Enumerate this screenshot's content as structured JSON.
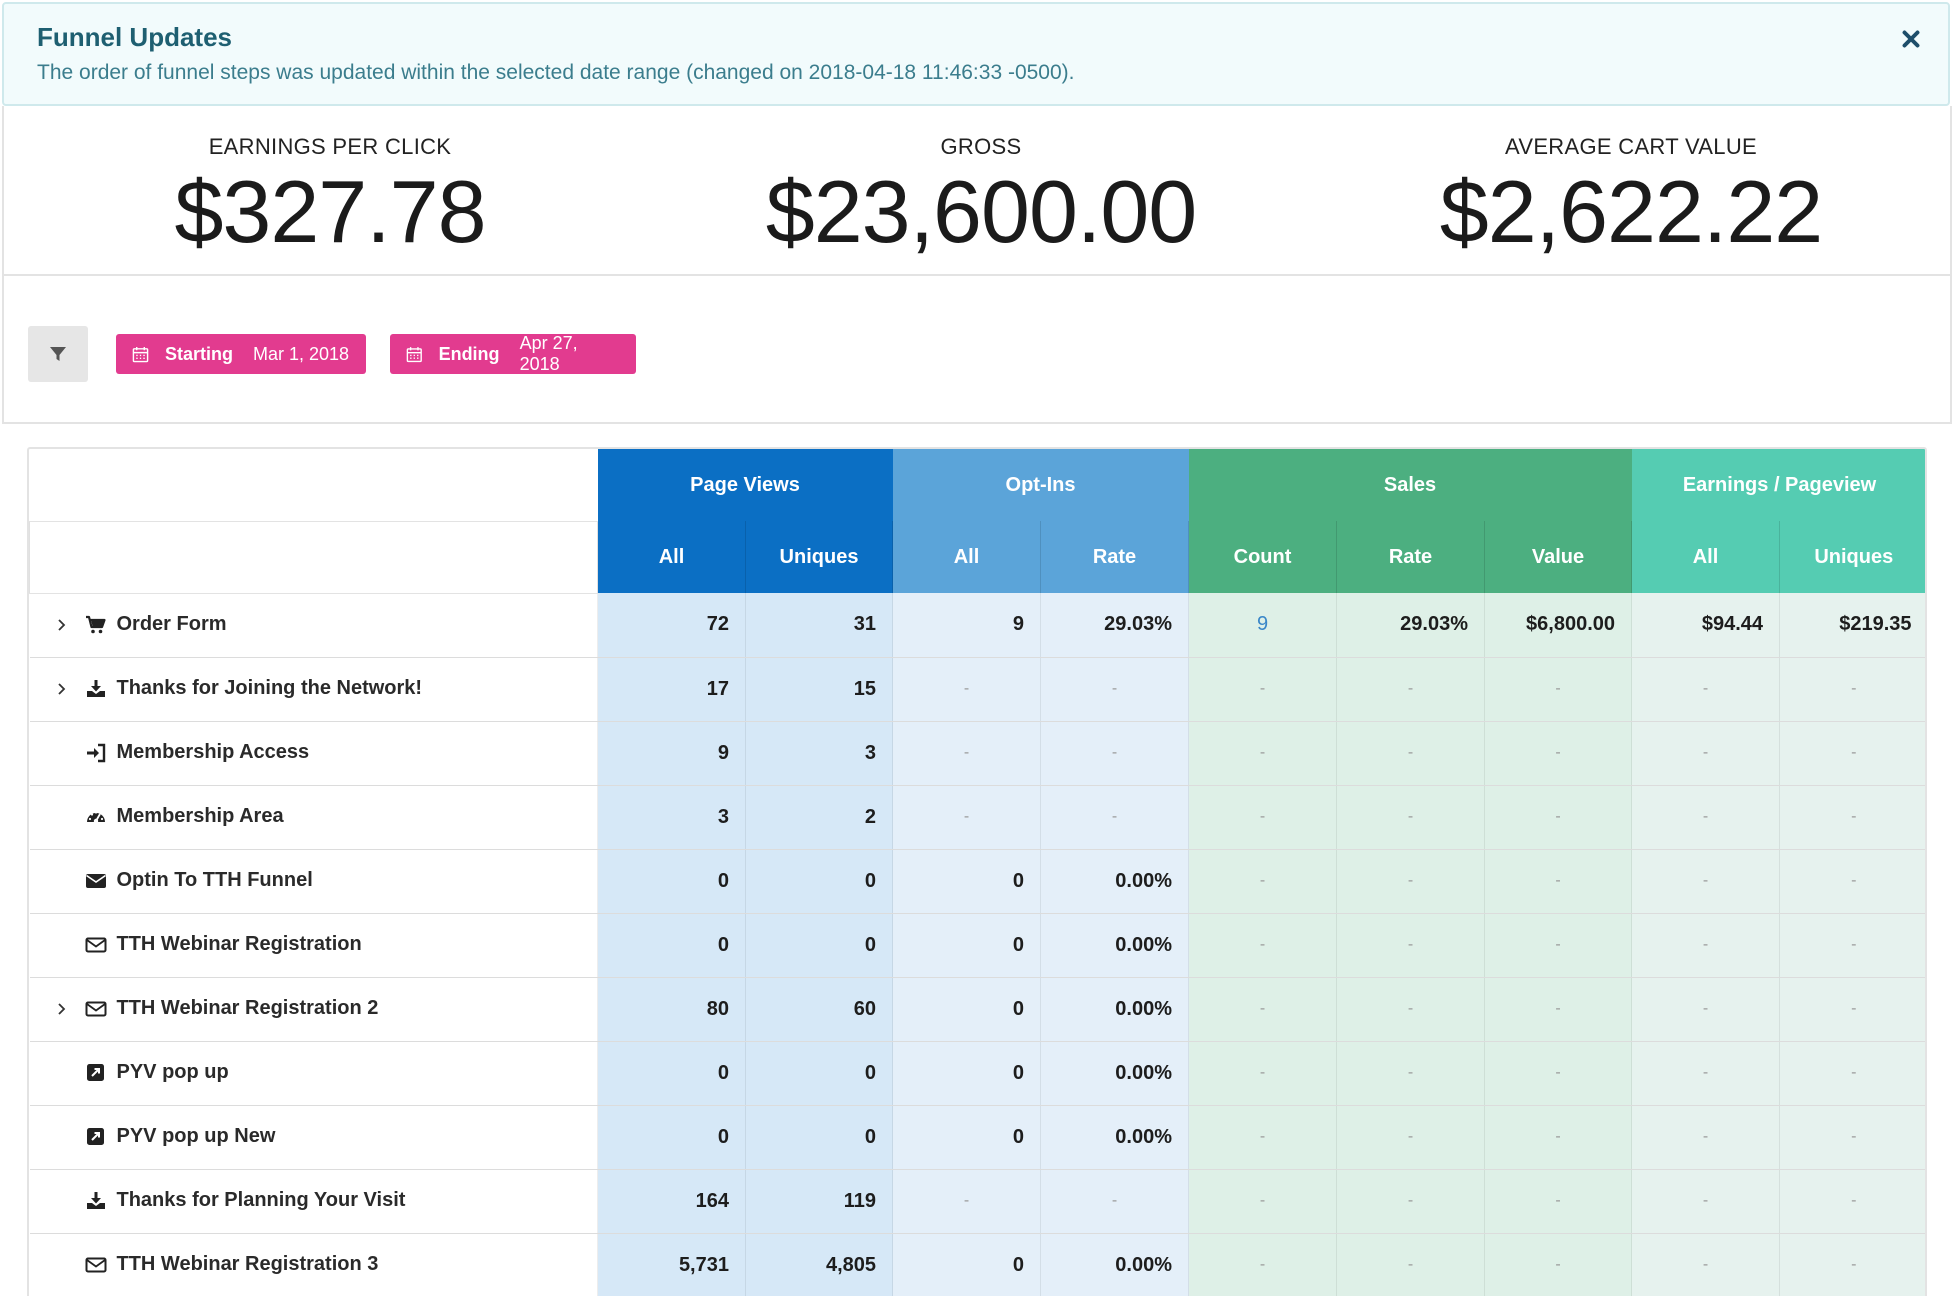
{
  "alert": {
    "title": "Funnel Updates",
    "message": "The order of funnel steps was updated within the selected date range (changed on 2018-04-18 11:46:33 -0500).",
    "close_icon": "close-icon"
  },
  "stats": [
    {
      "label": "EARNINGS PER CLICK",
      "value": "$327.78"
    },
    {
      "label": "GROSS",
      "value": "$23,600.00"
    },
    {
      "label": "AVERAGE CART VALUE",
      "value": "$2,622.22"
    }
  ],
  "filters": {
    "filter_icon": "filter-icon",
    "start": {
      "label": "Starting",
      "date": "Mar 1, 2018"
    },
    "end": {
      "label": "Ending",
      "date": "Apr 27, 2018"
    }
  },
  "table": {
    "groups": [
      "Page Views",
      "Opt-Ins",
      "Sales",
      "Earnings / Pageview"
    ],
    "subheaders": [
      "All",
      "Uniques",
      "All",
      "Rate",
      "Count",
      "Rate",
      "Value",
      "All",
      "Uniques"
    ],
    "rows": [
      {
        "name": "Order Form",
        "icon": "cart-icon",
        "expandable": true,
        "cells": [
          "72",
          "31",
          "9",
          "29.03%",
          "9",
          "29.03%",
          "$6,800.00",
          "$94.44",
          "$219.35"
        ]
      },
      {
        "name": "Thanks for Joining the Network!",
        "icon": "download-icon",
        "expandable": true,
        "cells": [
          "17",
          "15",
          "-",
          "-",
          "-",
          "-",
          "-",
          "-",
          "-"
        ]
      },
      {
        "name": "Membership Access",
        "icon": "sign-in-icon",
        "expandable": false,
        "cells": [
          "9",
          "3",
          "-",
          "-",
          "-",
          "-",
          "-",
          "-",
          "-"
        ]
      },
      {
        "name": "Membership Area",
        "icon": "dashboard-icon",
        "expandable": false,
        "cells": [
          "3",
          "2",
          "-",
          "-",
          "-",
          "-",
          "-",
          "-",
          "-"
        ]
      },
      {
        "name": "Optin To TTH Funnel",
        "icon": "envelope-icon",
        "expandable": false,
        "cells": [
          "0",
          "0",
          "0",
          "0.00%",
          "-",
          "-",
          "-",
          "-",
          "-"
        ]
      },
      {
        "name": "TTH Webinar Registration",
        "icon": "envelope-outline-icon",
        "expandable": false,
        "cells": [
          "0",
          "0",
          "0",
          "0.00%",
          "-",
          "-",
          "-",
          "-",
          "-"
        ]
      },
      {
        "name": "TTH Webinar Registration 2",
        "icon": "envelope-outline-icon",
        "expandable": true,
        "cells": [
          "80",
          "60",
          "0",
          "0.00%",
          "-",
          "-",
          "-",
          "-",
          "-"
        ]
      },
      {
        "name": "PYV pop up",
        "icon": "external-link-icon",
        "expandable": false,
        "cells": [
          "0",
          "0",
          "0",
          "0.00%",
          "-",
          "-",
          "-",
          "-",
          "-"
        ]
      },
      {
        "name": "PYV pop up New",
        "icon": "external-link-icon",
        "expandable": false,
        "cells": [
          "0",
          "0",
          "0",
          "0.00%",
          "-",
          "-",
          "-",
          "-",
          "-"
        ]
      },
      {
        "name": "Thanks for Planning Your Visit",
        "icon": "download-icon",
        "expandable": false,
        "cells": [
          "164",
          "119",
          "-",
          "-",
          "-",
          "-",
          "-",
          "-",
          "-"
        ]
      },
      {
        "name": "TTH Webinar Registration 3",
        "icon": "envelope-outline-icon",
        "expandable": false,
        "cells": [
          "5,731",
          "4,805",
          "0",
          "0.00%",
          "-",
          "-",
          "-",
          "-",
          "-"
        ]
      }
    ]
  },
  "colors": {
    "page_views": "#0b6fc4",
    "opt_ins": "#5ba4d9",
    "sales": "#4caf80",
    "earnings": "#55ccb2",
    "date_chip": "#e23b8f",
    "alert_title": "#1e5f71"
  }
}
